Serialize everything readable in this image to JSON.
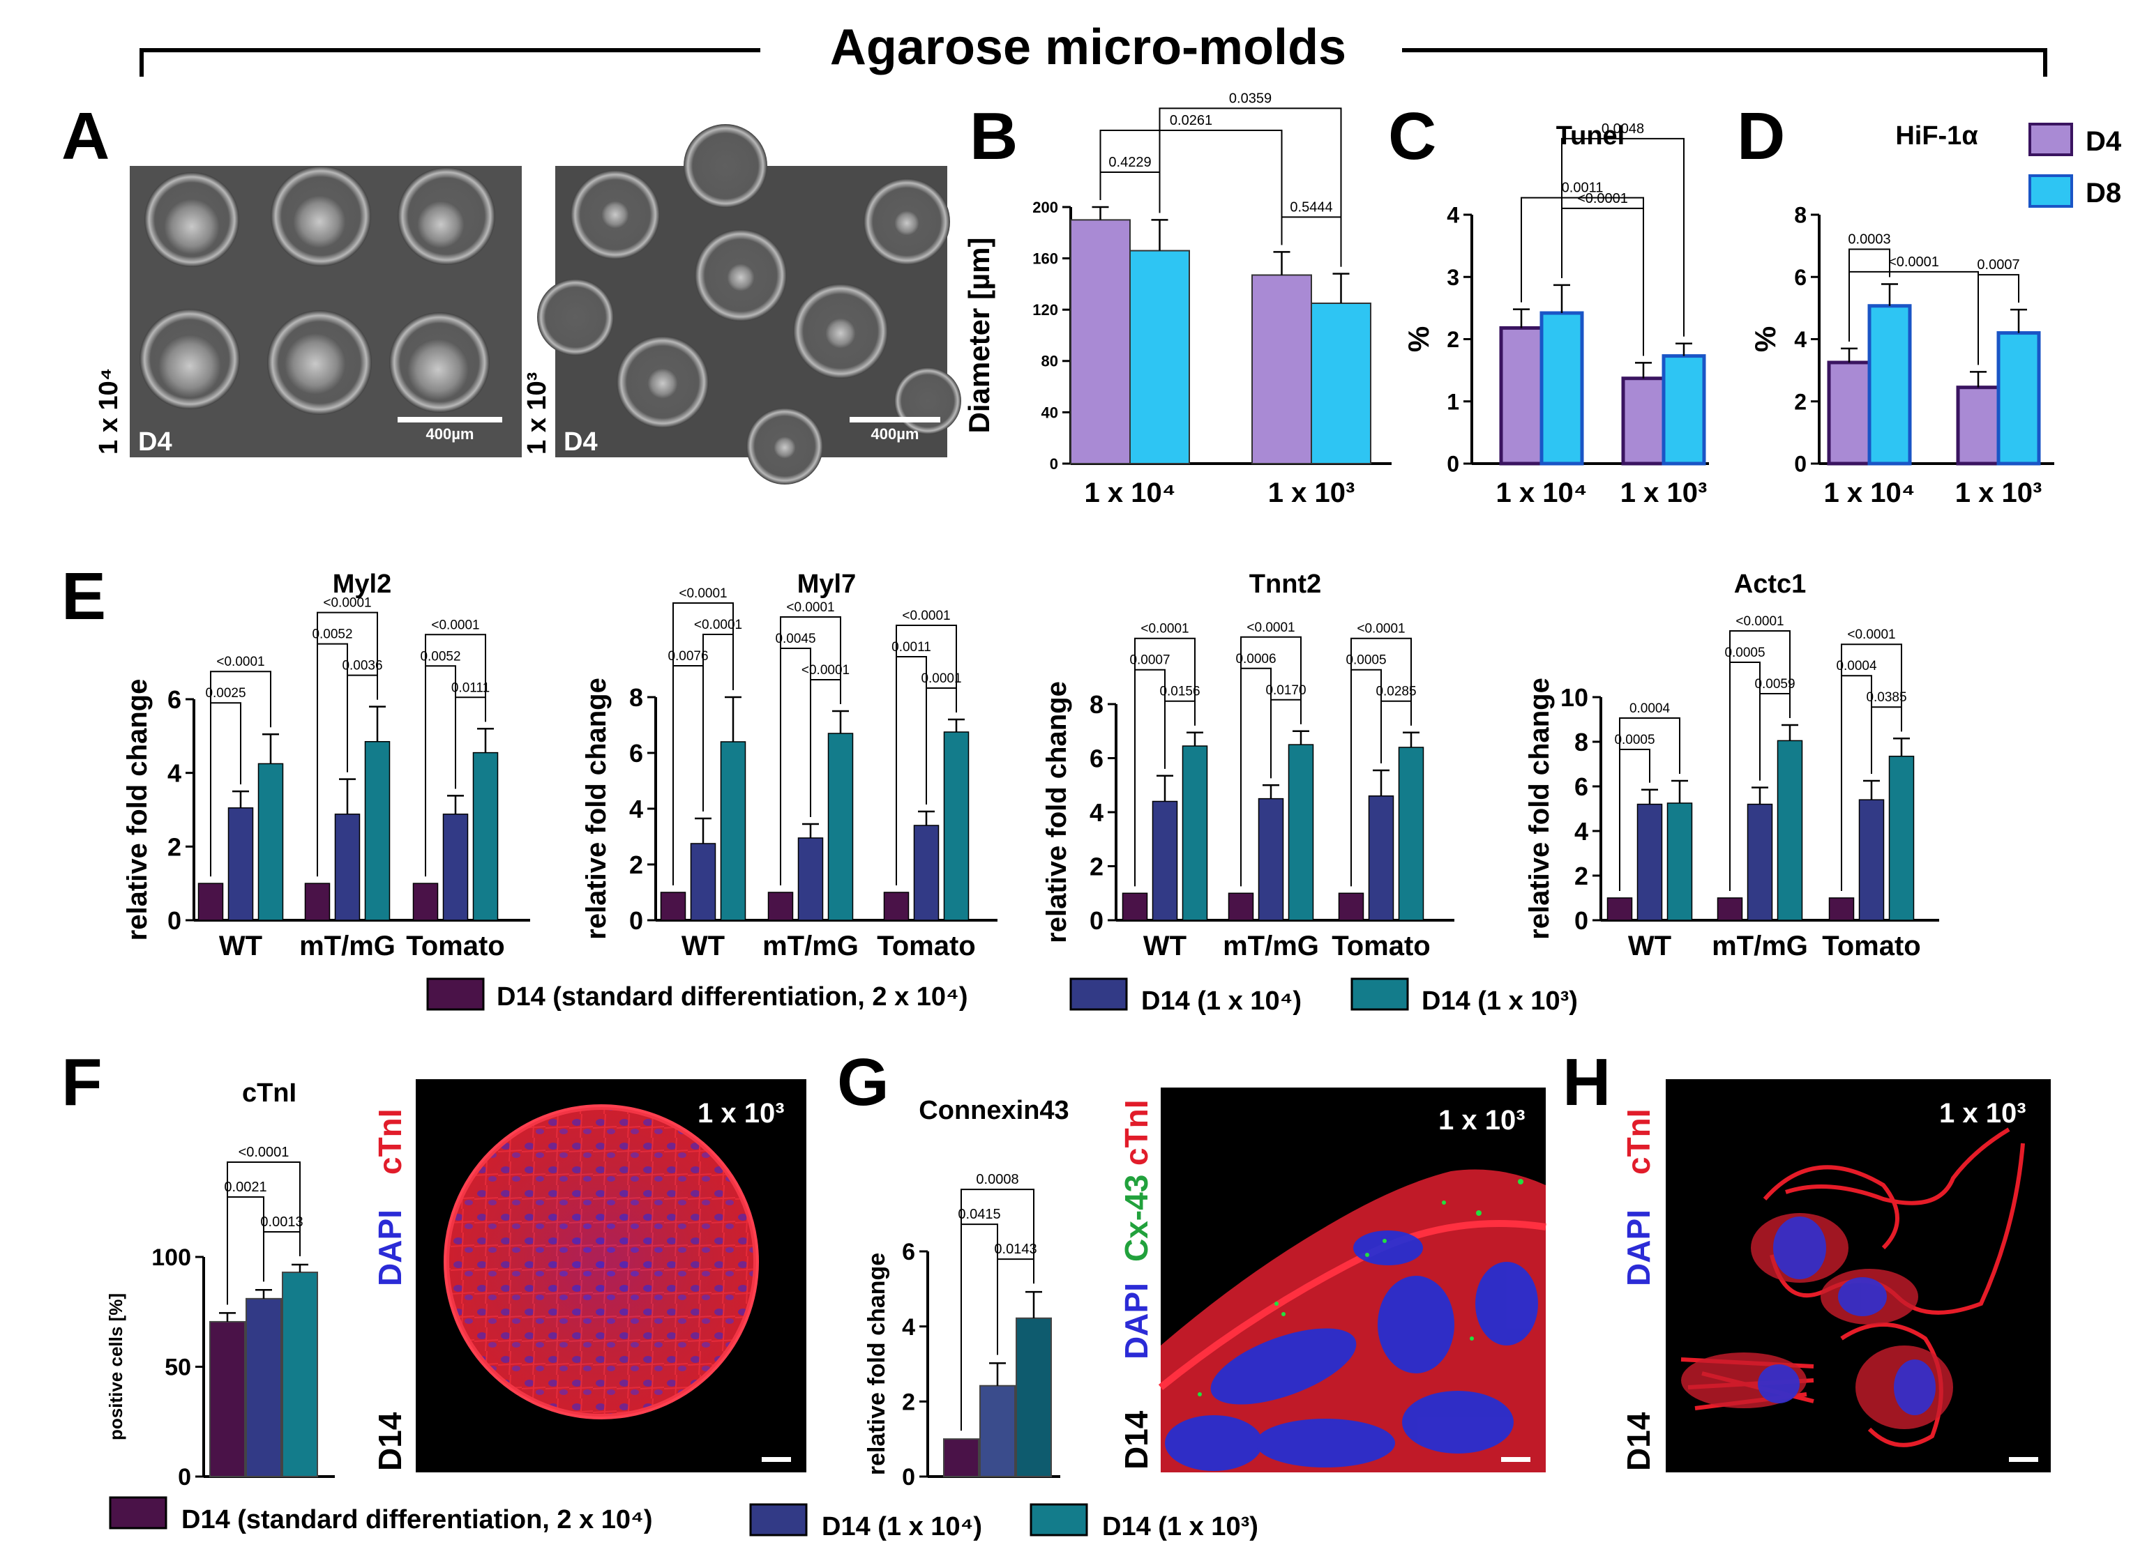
{
  "title": "Agarose micro-molds",
  "colors": {
    "d4": "#a98ad4",
    "d8": "#2ec5f3",
    "std": "#4a1248",
    "c1e4": "#323a86",
    "c1e3": "#137c8b",
    "c1e4_g": "#3a4c8c",
    "c1e3_g": "#0e5b6e",
    "red": "#e11c2a",
    "green": "#21a13c",
    "blue": "#2b2bd6",
    "black": "#000000"
  },
  "panels": {
    "A": {
      "letter": "A",
      "left_image": {
        "density": "1 x 10⁴",
        "day": "D4",
        "scale_bar": "400µm"
      },
      "right_image": {
        "density": "1 x 10³",
        "day": "D4",
        "scale_bar": "400µm"
      }
    },
    "B": {
      "letter": "B"
    },
    "C": {
      "letter": "C"
    },
    "D": {
      "letter": "D"
    },
    "E": {
      "letter": "E"
    },
    "F": {
      "letter": "F",
      "image": {
        "dapi": "DAPI",
        "ctni": "cTnI",
        "density": "1 x 10³",
        "day": "D14"
      }
    },
    "G": {
      "letter": "G",
      "image": {
        "dapi": "DAPI",
        "cx43": "Cx-43",
        "ctni": "cTnI",
        "density": "1 x 10³",
        "day": "D14"
      }
    },
    "H": {
      "letter": "H",
      "image": {
        "dapi": "DAPI",
        "ctni": "cTnI",
        "density": "1 x 10³",
        "day": "D14"
      }
    }
  },
  "legends": {
    "bcd": [
      {
        "label": "D4",
        "color": "#a98ad4"
      },
      {
        "label": "D8",
        "color": "#2ec5f3"
      }
    ],
    "e": [
      {
        "label": "D14 (standard differentiation, 2 x 10⁴)",
        "color": "#4a1248"
      },
      {
        "label": "D14 (1 x 10⁴)",
        "color": "#323a86"
      },
      {
        "label": "D14 (1 x 10³)",
        "color": "#137c8b"
      }
    ],
    "fg": [
      {
        "label": "D14 (standard differentiation, 2 x 10⁴)",
        "color": "#4a1248"
      },
      {
        "label": "D14 (1 x 10⁴)",
        "color": "#323a86"
      },
      {
        "label": "D14 (1 x 10³)",
        "color": "#137c8b"
      }
    ]
  },
  "chart_data": [
    {
      "id": "B",
      "type": "bar",
      "title": "",
      "ylabel": "Diameter [µm]",
      "ylim": [
        0,
        200
      ],
      "yticks": [
        0,
        40,
        80,
        120,
        160,
        200
      ],
      "categories": [
        "1 x 10⁴",
        "1 x 10³"
      ],
      "series": [
        {
          "name": "D4",
          "values": [
            190,
            147
          ],
          "errors": [
            10,
            18
          ]
        },
        {
          "name": "D8",
          "values": [
            166,
            125
          ],
          "errors": [
            24,
            23
          ]
        }
      ],
      "significance": [
        {
          "label": "0.4229",
          "from": [
            0,
            0
          ],
          "to": [
            0,
            1
          ]
        },
        {
          "label": "0.5444",
          "from": [
            1,
            0
          ],
          "to": [
            1,
            1
          ]
        },
        {
          "label": "0.0261",
          "from": [
            0,
            0
          ],
          "to": [
            1,
            0
          ]
        },
        {
          "label": "0.0359",
          "from": [
            0,
            1
          ],
          "to": [
            1,
            1
          ]
        }
      ]
    },
    {
      "id": "C",
      "type": "bar",
      "title": "Tunel",
      "ylabel": "%",
      "ylim": [
        0,
        4
      ],
      "yticks": [
        0,
        1,
        2,
        3,
        4
      ],
      "categories": [
        "1 x 10⁴",
        "1 x 10³"
      ],
      "series": [
        {
          "name": "D4",
          "values": [
            2.18,
            1.37
          ],
          "errors": [
            0.3,
            0.25
          ]
        },
        {
          "name": "D8",
          "values": [
            2.42,
            1.73
          ],
          "errors": [
            0.45,
            0.2
          ]
        }
      ],
      "significance": [
        {
          "label": "<0.0001",
          "from": [
            0,
            1
          ],
          "to": [
            1,
            0
          ]
        },
        {
          "label": "0.0011",
          "from": [
            0,
            0
          ],
          "to": [
            1,
            0
          ]
        },
        {
          "label": "0.0048",
          "from": [
            0,
            1
          ],
          "to": [
            1,
            1
          ]
        }
      ]
    },
    {
      "id": "D",
      "type": "bar",
      "title": "HiF-1α",
      "ylabel": "%",
      "ylim": [
        0,
        8
      ],
      "yticks": [
        0,
        2,
        4,
        6,
        8
      ],
      "categories": [
        "1 x 10⁴",
        "1 x 10³"
      ],
      "series": [
        {
          "name": "D4",
          "values": [
            3.25,
            2.45
          ],
          "errors": [
            0.45,
            0.5
          ]
        },
        {
          "name": "D8",
          "values": [
            5.07,
            4.2
          ],
          "errors": [
            0.7,
            0.75
          ]
        }
      ],
      "significance": [
        {
          "label": "0.0003",
          "from": [
            0,
            0
          ],
          "to": [
            0,
            1
          ]
        },
        {
          "label": "0.0007",
          "from": [
            1,
            0
          ],
          "to": [
            1,
            1
          ]
        },
        {
          "label": "<0.0001",
          "from": [
            0,
            0
          ],
          "to": [
            1,
            0
          ]
        }
      ]
    },
    {
      "id": "Myl2",
      "type": "bar",
      "title": "Myl2",
      "ylabel": "relative fold change",
      "ylim": [
        0,
        6
      ],
      "yticks": [
        0,
        2,
        4,
        6
      ],
      "categories": [
        "WT",
        "mT/mG",
        "Tomato"
      ],
      "series": [
        {
          "name": "D14 (standard differentiation, 2 x 10⁴)",
          "values": [
            1,
            1,
            1
          ],
          "errors": [
            0,
            0,
            0
          ]
        },
        {
          "name": "D14 (1 x 10⁴)",
          "values": [
            3.05,
            2.88,
            2.88
          ],
          "errors": [
            0.45,
            0.95,
            0.5
          ]
        },
        {
          "name": "D14 (1 x 10³)",
          "values": [
            4.25,
            4.85,
            4.55
          ],
          "errors": [
            0.8,
            0.95,
            0.65
          ]
        }
      ],
      "significance": [
        {
          "group": 0,
          "pairs": [
            [
              "0.0025",
              0,
              1
            ],
            [
              "<0.0001",
              0,
              2
            ]
          ]
        },
        {
          "group": 1,
          "pairs": [
            [
              "0.0036",
              1,
              2
            ],
            [
              "0.0052",
              0,
              1
            ],
            [
              "<0.0001",
              0,
              2
            ]
          ]
        },
        {
          "group": 2,
          "pairs": [
            [
              "0.0111",
              1,
              2
            ],
            [
              "0.0052",
              0,
              1
            ],
            [
              "<0.0001",
              0,
              2
            ]
          ]
        }
      ]
    },
    {
      "id": "Myl7",
      "type": "bar",
      "title": "Myl7",
      "ylabel": "relative fold change",
      "ylim": [
        0,
        8
      ],
      "yticks": [
        0,
        2,
        4,
        6,
        8
      ],
      "categories": [
        "WT",
        "mT/mG",
        "Tomato"
      ],
      "series": [
        {
          "name": "D14 (standard differentiation, 2 x 10⁴)",
          "values": [
            1,
            1,
            1
          ],
          "errors": [
            0,
            0,
            0
          ]
        },
        {
          "name": "D14 (1 x 10⁴)",
          "values": [
            2.75,
            2.95,
            3.4
          ],
          "errors": [
            0.9,
            0.5,
            0.5
          ]
        },
        {
          "name": "D14 (1 x 10³)",
          "values": [
            6.4,
            6.7,
            6.75
          ],
          "errors": [
            1.6,
            0.8,
            0.45
          ]
        }
      ],
      "significance": [
        {
          "group": 0,
          "pairs": [
            [
              "0.0076",
              0,
              1
            ],
            [
              "<0.0001",
              1,
              2
            ],
            [
              "<0.0001",
              0,
              2
            ]
          ]
        },
        {
          "group": 1,
          "pairs": [
            [
              "<0.0001",
              1,
              2
            ],
            [
              "0.0045",
              0,
              1
            ],
            [
              "<0.0001",
              0,
              2
            ]
          ]
        },
        {
          "group": 2,
          "pairs": [
            [
              "0.0001",
              1,
              2
            ],
            [
              "0.0011",
              0,
              1
            ],
            [
              "<0.0001",
              0,
              2
            ]
          ]
        }
      ]
    },
    {
      "id": "Tnnt2",
      "type": "bar",
      "title": "Tnnt2",
      "ylabel": "relative fold change",
      "ylim": [
        0,
        8
      ],
      "yticks": [
        0,
        2,
        4,
        6,
        8
      ],
      "categories": [
        "WT",
        "mT/mG",
        "Tomato"
      ],
      "series": [
        {
          "name": "D14 (standard differentiation, 2 x 10⁴)",
          "values": [
            1,
            1,
            1
          ],
          "errors": [
            0,
            0,
            0
          ]
        },
        {
          "name": "D14 (1 x 10⁴)",
          "values": [
            4.4,
            4.5,
            4.6
          ],
          "errors": [
            0.95,
            0.5,
            0.95
          ]
        },
        {
          "name": "D14 (1 x 10³)",
          "values": [
            6.45,
            6.5,
            6.4
          ],
          "errors": [
            0.5,
            0.5,
            0.55
          ]
        }
      ],
      "significance": [
        {
          "group": 0,
          "pairs": [
            [
              "0.0156",
              1,
              2
            ],
            [
              "0.0007",
              0,
              1
            ],
            [
              "<0.0001",
              0,
              2
            ]
          ]
        },
        {
          "group": 1,
          "pairs": [
            [
              "0.0170",
              1,
              2
            ],
            [
              "0.0006",
              0,
              1
            ],
            [
              "<0.0001",
              0,
              2
            ]
          ]
        },
        {
          "group": 2,
          "pairs": [
            [
              "0.0285",
              1,
              2
            ],
            [
              "0.0005",
              0,
              1
            ],
            [
              "<0.0001",
              0,
              2
            ]
          ]
        }
      ]
    },
    {
      "id": "Actc1",
      "type": "bar",
      "title": "Actc1",
      "ylabel": "relative fold change",
      "ylim": [
        0,
        10
      ],
      "yticks": [
        0,
        2,
        4,
        6,
        8,
        10
      ],
      "categories": [
        "WT",
        "mT/mG",
        "Tomato"
      ],
      "series": [
        {
          "name": "D14 (standard differentiation, 2 x 10⁴)",
          "values": [
            1,
            1,
            1
          ],
          "errors": [
            0,
            0,
            0
          ]
        },
        {
          "name": "D14 (1 x 10⁴)",
          "values": [
            5.2,
            5.2,
            5.4
          ],
          "errors": [
            0.65,
            0.75,
            0.85
          ]
        },
        {
          "name": "D14 (1 x 10³)",
          "values": [
            5.25,
            8.05,
            7.35
          ],
          "errors": [
            1.0,
            0.7,
            0.8
          ]
        }
      ],
      "significance": [
        {
          "group": 0,
          "pairs": [
            [
              "0.0005",
              0,
              1
            ],
            [
              "0.0004",
              0,
              2
            ]
          ]
        },
        {
          "group": 1,
          "pairs": [
            [
              "0.0059",
              1,
              2
            ],
            [
              "0.0005",
              0,
              1
            ],
            [
              "<0.0001",
              0,
              2
            ]
          ]
        },
        {
          "group": 2,
          "pairs": [
            [
              "0.0385",
              1,
              2
            ],
            [
              "0.0004",
              0,
              1
            ],
            [
              "<0.0001",
              0,
              2
            ]
          ]
        }
      ]
    },
    {
      "id": "F",
      "type": "bar",
      "title": "cTnI",
      "ylabel": "positive cells [%]",
      "ylim": [
        0,
        100
      ],
      "yticks": [
        0,
        50,
        100
      ],
      "categories": [
        "D14 (standard differentiation, 2 x 10⁴)",
        "D14 (1 x 10⁴)",
        "D14 (1 x 10³)"
      ],
      "values": [
        70.5,
        81,
        93
      ],
      "errors": [
        4,
        4,
        3.5
      ],
      "significance": [
        [
          "0.0013",
          1,
          2
        ],
        [
          "0.0021",
          0,
          1
        ],
        [
          "<0.0001",
          0,
          2
        ]
      ]
    },
    {
      "id": "G",
      "type": "bar",
      "title": "Connexin43",
      "ylabel": "relative fold change",
      "ylim": [
        0,
        6
      ],
      "yticks": [
        0,
        2,
        4,
        6
      ],
      "categories": [
        "D14 (standard differentiation, 2 x 10⁴)",
        "D14 (1 x 10⁴)",
        "D14 (1 x 10³)"
      ],
      "values": [
        1,
        2.42,
        4.22
      ],
      "errors": [
        0,
        0.6,
        0.7
      ],
      "significance": [
        [
          "0.0143",
          1,
          2
        ],
        [
          "0.0415",
          0,
          1
        ],
        [
          "0.0008",
          0,
          2
        ]
      ]
    }
  ]
}
